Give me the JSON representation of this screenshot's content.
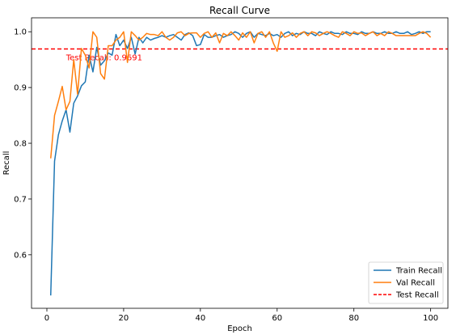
{
  "chart_data": {
    "type": "line",
    "title": "Recall Curve",
    "xlabel": "Epoch",
    "ylabel": "Recall",
    "xlim": [
      -4,
      104.5
    ],
    "ylim": [
      0.504,
      1.025
    ],
    "xticks": [
      0,
      20,
      40,
      60,
      80,
      100
    ],
    "xtick_labels": [
      "0",
      "20",
      "40",
      "60",
      "80",
      "100"
    ],
    "yticks": [
      0.6,
      0.7,
      0.8,
      0.9,
      1.0
    ],
    "ytick_labels": [
      "0.6",
      "0.7",
      "0.8",
      "0.9",
      "1.0"
    ],
    "grid": false,
    "legend_position": "bottom-right",
    "series": [
      {
        "name": "Train Recall",
        "color": "#1f77b4",
        "style": "solid",
        "x": [
          1,
          2,
          3,
          4,
          5,
          6,
          7,
          8,
          9,
          10,
          11,
          12,
          13,
          14,
          15,
          16,
          17,
          18,
          19,
          20,
          21,
          22,
          23,
          24,
          25,
          26,
          27,
          28,
          29,
          30,
          31,
          32,
          33,
          34,
          35,
          36,
          37,
          38,
          39,
          40,
          41,
          42,
          43,
          44,
          45,
          46,
          47,
          48,
          49,
          50,
          51,
          52,
          53,
          54,
          55,
          56,
          57,
          58,
          59,
          60,
          61,
          62,
          63,
          64,
          65,
          66,
          67,
          68,
          69,
          70,
          71,
          72,
          73,
          74,
          75,
          76,
          77,
          78,
          79,
          80,
          81,
          82,
          83,
          84,
          85,
          86,
          87,
          88,
          89,
          90,
          91,
          92,
          93,
          94,
          95,
          96,
          97,
          98,
          99,
          100
        ],
        "values": [
          0.527,
          0.768,
          0.815,
          0.84,
          0.86,
          0.82,
          0.872,
          0.885,
          0.903,
          0.91,
          0.958,
          0.928,
          0.972,
          0.94,
          0.948,
          0.962,
          0.958,
          0.995,
          0.975,
          0.985,
          0.97,
          0.99,
          0.96,
          0.99,
          0.98,
          0.99,
          0.985,
          0.988,
          0.99,
          0.993,
          0.99,
          0.993,
          0.995,
          0.99,
          0.985,
          0.995,
          0.998,
          0.993,
          0.975,
          0.977,
          0.995,
          0.99,
          0.99,
          0.993,
          0.995,
          0.99,
          0.993,
          0.995,
          1.0,
          0.997,
          0.99,
          0.997,
          1.0,
          0.99,
          0.997,
          0.995,
          0.993,
          0.997,
          0.993,
          0.995,
          0.99,
          0.997,
          1.0,
          0.993,
          0.997,
          0.995,
          1.0,
          0.997,
          0.997,
          0.993,
          1.0,
          0.997,
          0.995,
          1.0,
          0.997,
          0.997,
          0.995,
          1.0,
          0.997,
          0.997,
          0.995,
          1.0,
          0.997,
          0.997,
          1.0,
          0.997,
          0.997,
          1.0,
          0.997,
          0.997,
          1.0,
          0.997,
          0.997,
          1.0,
          0.995,
          0.997,
          1.0,
          0.997,
          1.0,
          1.0
        ]
      },
      {
        "name": "Val Recall",
        "color": "#ff7f0e",
        "style": "solid",
        "x": [
          1,
          2,
          3,
          4,
          5,
          6,
          7,
          8,
          9,
          10,
          11,
          12,
          13,
          14,
          15,
          16,
          17,
          18,
          19,
          20,
          21,
          22,
          23,
          24,
          25,
          26,
          27,
          28,
          29,
          30,
          31,
          32,
          33,
          34,
          35,
          36,
          37,
          38,
          39,
          40,
          41,
          42,
          43,
          44,
          45,
          46,
          47,
          48,
          49,
          50,
          51,
          52,
          53,
          54,
          55,
          56,
          57,
          58,
          59,
          60,
          61,
          62,
          63,
          64,
          65,
          66,
          67,
          68,
          69,
          70,
          71,
          72,
          73,
          74,
          75,
          76,
          77,
          78,
          79,
          80,
          81,
          82,
          83,
          84,
          85,
          86,
          87,
          88,
          89,
          90,
          91,
          92,
          93,
          94,
          95,
          96,
          97,
          98,
          99,
          100
        ],
        "values": [
          0.773,
          0.85,
          0.875,
          0.902,
          0.86,
          0.875,
          0.95,
          0.888,
          0.97,
          0.958,
          0.935,
          1.0,
          0.99,
          0.925,
          0.915,
          0.975,
          0.975,
          0.985,
          0.99,
          1.0,
          0.945,
          1.0,
          0.993,
          0.985,
          0.99,
          0.997,
          0.995,
          0.995,
          0.993,
          1.0,
          0.99,
          0.985,
          0.99,
          0.998,
          1.0,
          0.993,
          0.997,
          0.998,
          0.998,
          0.99,
          0.997,
          1.0,
          0.99,
          0.998,
          0.98,
          0.997,
          0.993,
          1.0,
          0.993,
          0.985,
          0.998,
          0.99,
          1.0,
          0.98,
          0.997,
          1.0,
          0.99,
          1.0,
          0.98,
          0.965,
          1.0,
          0.99,
          0.993,
          0.998,
          0.99,
          0.997,
          1.0,
          0.993,
          1.0,
          0.998,
          0.993,
          0.997,
          1.0,
          0.997,
          0.993,
          0.99,
          1.0,
          0.997,
          0.993,
          1.0,
          0.997,
          0.998,
          0.993,
          0.997,
          1.0,
          0.993,
          0.997,
          0.993,
          1.0,
          0.997,
          0.993,
          0.993,
          0.993,
          0.993,
          0.993,
          0.993,
          0.997,
          1.0,
          0.997,
          0.99
        ]
      }
    ],
    "reference_lines": [
      {
        "name": "Test Recall",
        "value": 0.9691,
        "color": "#ff0000",
        "style": "dashed",
        "label": "Test Recall: 0.9691",
        "label_x": 5
      }
    ]
  }
}
